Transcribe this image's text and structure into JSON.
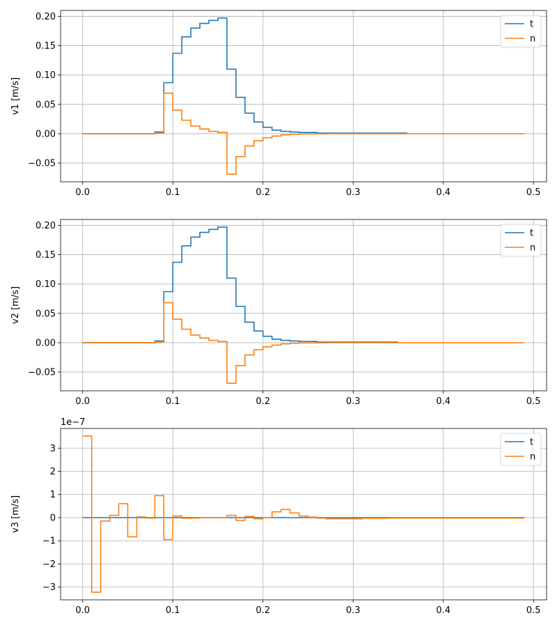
{
  "chart_data": [
    {
      "type": "line",
      "step": "post",
      "ylabel": "v1 [m/s]",
      "xlim": [
        -0.0245,
        0.5145
      ],
      "ylim": [
        -0.082,
        0.21
      ],
      "xticks": [
        0.0,
        0.1,
        0.2,
        0.3,
        0.4,
        0.5
      ],
      "xtick_labels": [
        "0.0",
        "0.1",
        "0.2",
        "0.3",
        "0.4",
        "0.5"
      ],
      "yticks": [
        -0.05,
        0.0,
        0.05,
        0.1,
        0.15,
        0.2
      ],
      "ytick_labels": [
        "−0.05",
        "0.00",
        "0.05",
        "0.10",
        "0.15",
        "0.20"
      ],
      "grid": true,
      "legend": "upper right",
      "series": [
        {
          "name": "t",
          "color": "#1f77b4",
          "x": [
            0,
            0.08,
            0.09,
            0.1,
            0.11,
            0.12,
            0.13,
            0.14,
            0.15,
            0.16,
            0.17,
            0.18,
            0.19,
            0.2,
            0.21,
            0.22,
            0.23,
            0.24,
            0.25,
            0.26,
            0.27,
            0.28,
            0.29,
            0.3,
            0.31,
            0.32,
            0.33,
            0.34,
            0.35,
            0.36
          ],
          "y": [
            0,
            0.003,
            0.087,
            0.137,
            0.165,
            0.18,
            0.188,
            0.193,
            0.197,
            0.11,
            0.062,
            0.035,
            0.02,
            0.011,
            0.006,
            0.004,
            0.003,
            0.002,
            0.002,
            0.001,
            0.001,
            0.001,
            0.001,
            0.001,
            0.001,
            0.001,
            0.001,
            0.001,
            0.001,
            0.001
          ]
        },
        {
          "name": "n",
          "color": "#ff7f0e",
          "x": [
            0,
            0.08,
            0.09,
            0.1,
            0.11,
            0.12,
            0.13,
            0.14,
            0.15,
            0.16,
            0.17,
            0.18,
            0.19,
            0.2,
            0.21,
            0.22,
            0.23,
            0.24,
            0.25,
            0.26,
            0.27,
            0.28,
            0.49
          ],
          "y": [
            0,
            0.001,
            0.069,
            0.04,
            0.023,
            0.013,
            0.008,
            0.004,
            0.002,
            -0.069,
            -0.039,
            -0.021,
            -0.012,
            -0.007,
            -0.004,
            -0.002,
            -0.001,
            -0.0005,
            -0.0003,
            -0.0002,
            -0.0001,
            0,
            0
          ]
        }
      ]
    },
    {
      "type": "line",
      "step": "post",
      "ylabel": "v2 [m/s]",
      "xlim": [
        -0.0245,
        0.5145
      ],
      "ylim": [
        -0.082,
        0.21
      ],
      "xticks": [
        0.0,
        0.1,
        0.2,
        0.3,
        0.4,
        0.5
      ],
      "xtick_labels": [
        "0.0",
        "0.1",
        "0.2",
        "0.3",
        "0.4",
        "0.5"
      ],
      "yticks": [
        -0.05,
        0.0,
        0.05,
        0.1,
        0.15,
        0.2
      ],
      "ytick_labels": [
        "−0.05",
        "0.00",
        "0.05",
        "0.10",
        "0.15",
        "0.20"
      ],
      "grid": true,
      "legend": "upper right",
      "series": [
        {
          "name": "t",
          "color": "#1f77b4",
          "x": [
            0,
            0.08,
            0.09,
            0.1,
            0.11,
            0.12,
            0.13,
            0.14,
            0.15,
            0.16,
            0.17,
            0.18,
            0.19,
            0.2,
            0.21,
            0.22,
            0.23,
            0.24,
            0.25,
            0.26,
            0.27,
            0.28,
            0.29,
            0.3,
            0.31,
            0.32,
            0.33,
            0.34,
            0.35
          ],
          "y": [
            0,
            0.003,
            0.087,
            0.137,
            0.165,
            0.18,
            0.188,
            0.193,
            0.197,
            0.11,
            0.062,
            0.035,
            0.02,
            0.011,
            0.006,
            0.004,
            0.003,
            0.002,
            0.002,
            0.001,
            0.001,
            0.001,
            0.001,
            0.001,
            0.001,
            0.001,
            0.001,
            0.001,
            0.001
          ]
        },
        {
          "name": "n",
          "color": "#ff7f0e",
          "x": [
            0,
            0.08,
            0.09,
            0.1,
            0.11,
            0.12,
            0.13,
            0.14,
            0.15,
            0.16,
            0.17,
            0.18,
            0.19,
            0.2,
            0.21,
            0.22,
            0.23,
            0.24,
            0.25,
            0.26,
            0.27,
            0.28,
            0.49
          ],
          "y": [
            0,
            0.001,
            0.068,
            0.04,
            0.023,
            0.013,
            0.008,
            0.004,
            0.002,
            -0.069,
            -0.039,
            -0.021,
            -0.012,
            -0.007,
            -0.004,
            -0.002,
            -0.001,
            -0.0005,
            -0.0003,
            -0.0002,
            -0.0001,
            0,
            0
          ]
        }
      ]
    },
    {
      "type": "line",
      "step": "post",
      "ylabel": "v3 [m/s]",
      "y_offset_label": "1e−7",
      "y_scale_factor": 1e-07,
      "xlim": [
        -0.0245,
        0.5145
      ],
      "ylim": [
        -3.55,
        3.85
      ],
      "xticks": [
        0.0,
        0.1,
        0.2,
        0.3,
        0.4,
        0.5
      ],
      "xtick_labels": [
        "0.0",
        "0.1",
        "0.2",
        "0.3",
        "0.4",
        "0.5"
      ],
      "yticks": [
        -3,
        -2,
        -1,
        0,
        1,
        2,
        3
      ],
      "ytick_labels": [
        "−3",
        "−2",
        "−1",
        "0",
        "1",
        "2",
        "3"
      ],
      "grid": true,
      "legend": "upper right",
      "series": [
        {
          "name": "t",
          "color": "#1f77b4",
          "x": [
            0,
            0.49
          ],
          "y": [
            0,
            0
          ]
        },
        {
          "name": "n",
          "color": "#ff7f0e",
          "x": [
            0,
            0.01,
            0.02,
            0.03,
            0.04,
            0.05,
            0.06,
            0.07,
            0.08,
            0.09,
            0.1,
            0.11,
            0.12,
            0.13,
            0.16,
            0.17,
            0.18,
            0.19,
            0.2,
            0.21,
            0.22,
            0.23,
            0.24,
            0.25,
            0.26,
            0.27,
            0.3,
            0.31,
            0.34,
            0.49
          ],
          "y": [
            3.52,
            -3.22,
            -0.15,
            0.1,
            0.6,
            -0.83,
            0.03,
            -0.02,
            0.95,
            -0.95,
            0.07,
            -0.03,
            -0.02,
            0,
            0.1,
            -0.12,
            0.05,
            -0.05,
            0,
            0.25,
            0.35,
            0.2,
            0.07,
            0.02,
            -0.02,
            -0.05,
            -0.05,
            -0.03,
            -0.02,
            -0.02
          ]
        }
      ]
    }
  ]
}
